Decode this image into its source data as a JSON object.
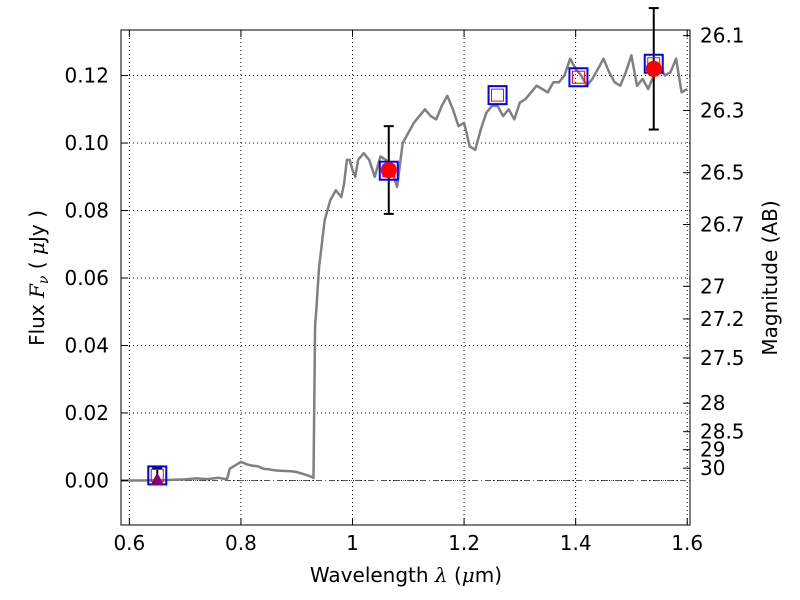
{
  "chart_data": {
    "type": "scatter",
    "xlabel": {
      "prefix": "Wavelength  ",
      "var": "λ",
      "suffix": " (",
      "mu": "μ",
      "unit": "m)"
    },
    "ylabel": {
      "prefix": "Flux  ",
      "var": "F",
      "sub": "ν",
      "suffix": "  ( ",
      "mu": "μ",
      "unit": "Jy )"
    },
    "ylabel_right": "Magnitude (AB)",
    "xlim": [
      0.585,
      1.605
    ],
    "ylim": [
      -0.0132,
      0.1335
    ],
    "grid": true,
    "x_ticks": [
      {
        "value": 0.6,
        "label": "0.6"
      },
      {
        "value": 0.8,
        "label": "0.8"
      },
      {
        "value": 1.0,
        "label": "1"
      },
      {
        "value": 1.2,
        "label": "1.2"
      },
      {
        "value": 1.4,
        "label": "1.4"
      },
      {
        "value": 1.6,
        "label": "1.6"
      }
    ],
    "y_ticks": [
      {
        "value": 0.0,
        "label": "0.00"
      },
      {
        "value": 0.02,
        "label": "0.02"
      },
      {
        "value": 0.04,
        "label": "0.04"
      },
      {
        "value": 0.06,
        "label": "0.06"
      },
      {
        "value": 0.08,
        "label": "0.08"
      },
      {
        "value": 0.1,
        "label": "0.10"
      },
      {
        "value": 0.12,
        "label": "0.12"
      }
    ],
    "magnitude_ticks": [
      {
        "value": 26.1,
        "label": "26.1"
      },
      {
        "value": 26.3,
        "label": "26.3"
      },
      {
        "value": 26.5,
        "label": "26.5"
      },
      {
        "value": 26.7,
        "label": "26.7"
      },
      {
        "value": 27.0,
        "label": "27"
      },
      {
        "value": 27.2,
        "label": "27.2"
      },
      {
        "value": 27.5,
        "label": "27.5"
      },
      {
        "value": 28.0,
        "label": "28"
      },
      {
        "value": 28.5,
        "label": "28.5"
      },
      {
        "value": 29.0,
        "label": "29"
      },
      {
        "value": 30.0,
        "label": "30"
      }
    ],
    "zero_line": 0.0,
    "model_spectrum": {
      "color": "#808080",
      "x": [
        0.585,
        0.62,
        0.66,
        0.7,
        0.72,
        0.74,
        0.76,
        0.775,
        0.78,
        0.785,
        0.79,
        0.8,
        0.805,
        0.81,
        0.82,
        0.83,
        0.84,
        0.85,
        0.86,
        0.87,
        0.88,
        0.89,
        0.9,
        0.91,
        0.92,
        0.93,
        0.933,
        0.935,
        0.94,
        0.95,
        0.96,
        0.97,
        0.975,
        0.98,
        0.985,
        0.99,
        0.995,
        1.0,
        1.005,
        1.01,
        1.02,
        1.03,
        1.04,
        1.05,
        1.06,
        1.07,
        1.08,
        1.09,
        1.1,
        1.11,
        1.12,
        1.13,
        1.14,
        1.15,
        1.16,
        1.17,
        1.18,
        1.19,
        1.2,
        1.21,
        1.22,
        1.23,
        1.24,
        1.25,
        1.26,
        1.27,
        1.28,
        1.29,
        1.3,
        1.31,
        1.32,
        1.33,
        1.34,
        1.35,
        1.36,
        1.37,
        1.38,
        1.39,
        1.4,
        1.41,
        1.42,
        1.43,
        1.44,
        1.45,
        1.46,
        1.47,
        1.48,
        1.49,
        1.5,
        1.51,
        1.52,
        1.53,
        1.54,
        1.55,
        1.56,
        1.57,
        1.58,
        1.59,
        1.6
      ],
      "y": [
        0.0,
        0.0,
        0.0001,
        0.0003,
        0.0006,
        0.0004,
        0.0008,
        0.0003,
        0.0035,
        0.004,
        0.0045,
        0.0055,
        0.0052,
        0.0048,
        0.0044,
        0.0042,
        0.0035,
        0.0033,
        0.003,
        0.0029,
        0.0028,
        0.0027,
        0.0025,
        0.002,
        0.0015,
        0.0008,
        0.046,
        0.05,
        0.063,
        0.077,
        0.083,
        0.086,
        0.085,
        0.084,
        0.088,
        0.095,
        0.095,
        0.092,
        0.09,
        0.095,
        0.097,
        0.095,
        0.09,
        0.096,
        0.095,
        0.092,
        0.087,
        0.1,
        0.103,
        0.106,
        0.108,
        0.11,
        0.108,
        0.107,
        0.111,
        0.114,
        0.11,
        0.105,
        0.106,
        0.099,
        0.098,
        0.104,
        0.109,
        0.111,
        0.111,
        0.108,
        0.11,
        0.107,
        0.112,
        0.113,
        0.115,
        0.117,
        0.116,
        0.115,
        0.118,
        0.118,
        0.12,
        0.125,
        0.122,
        0.12,
        0.117,
        0.119,
        0.122,
        0.125,
        0.121,
        0.118,
        0.117,
        0.121,
        0.126,
        0.117,
        0.119,
        0.116,
        0.12,
        0.123,
        0.12,
        0.121,
        0.125,
        0.115,
        0.116
      ]
    },
    "measurements": {
      "marker_color": "#ff0000",
      "errorbar_color": "#000000",
      "points": [
        {
          "x": 1.065,
          "y": 0.092,
          "yerr": 0.013
        },
        {
          "x": 1.54,
          "y": 0.122,
          "yerr": 0.018
        }
      ]
    },
    "upper_limit": {
      "x": 0.65,
      "y": 0.0,
      "color": "#800080",
      "errorbar": 0.0037
    },
    "model_bandpass": {
      "outer_color": "#0000ff",
      "inner_color": "#ff0000",
      "points": [
        {
          "x": 0.65,
          "y": 0.0015
        },
        {
          "x": 1.065,
          "y": 0.0918
        },
        {
          "x": 1.26,
          "y": 0.1142
        },
        {
          "x": 1.405,
          "y": 0.1195
        },
        {
          "x": 1.54,
          "y": 0.1235
        }
      ]
    }
  }
}
